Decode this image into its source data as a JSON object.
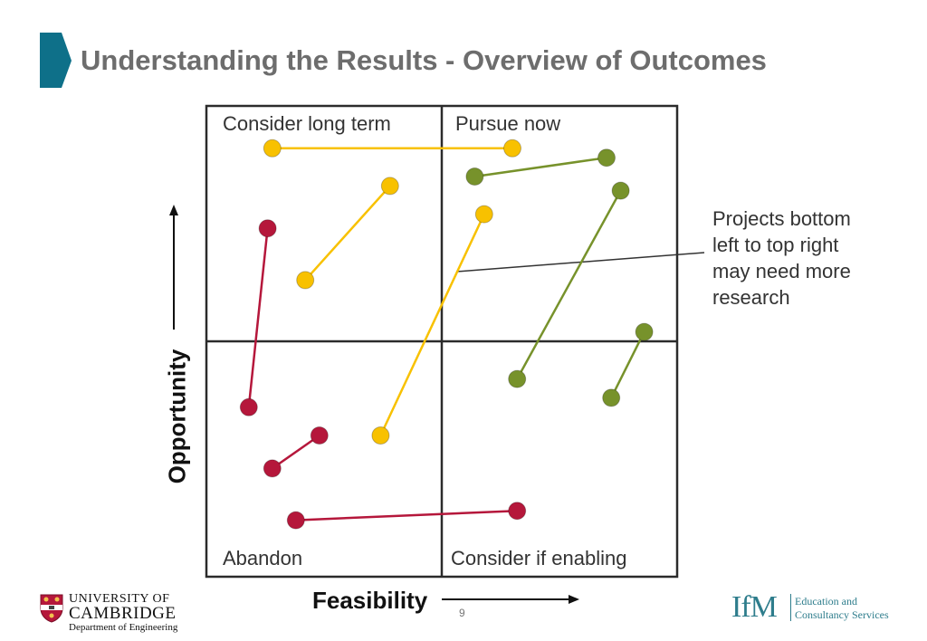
{
  "slide": {
    "title": "Understanding the Results - Overview of Outcomes",
    "page_number": "9",
    "accent_color": "#0e7089",
    "title_color": "#6d6d6d"
  },
  "quadrants": {
    "top_left": "Consider long term",
    "top_right": "Pursue now",
    "bottom_left": "Abandon",
    "bottom_right": "Consider if enabling"
  },
  "axes": {
    "x_label": "Feasibility",
    "y_label": "Opportunity"
  },
  "annotation": {
    "lines": [
      "Projects bottom",
      "left to top right",
      "may need more",
      "research"
    ]
  },
  "colors": {
    "red": "#b5173b",
    "yellow": "#f8c100",
    "green": "#77922b"
  },
  "chart_data": {
    "type": "scatter",
    "xlim": [
      0,
      100
    ],
    "ylim": [
      0,
      100
    ],
    "quadrant_split": {
      "x": 50,
      "y": 50
    },
    "segments": [
      {
        "color": "yellow",
        "from": [
          14,
          91
        ],
        "to": [
          65,
          91
        ]
      },
      {
        "color": "green",
        "from": [
          57,
          85
        ],
        "to": [
          85,
          89
        ]
      },
      {
        "color": "yellow",
        "from": [
          21,
          63
        ],
        "to": [
          39,
          83
        ]
      },
      {
        "color": "green",
        "from": [
          66,
          42
        ],
        "to": [
          88,
          82
        ]
      },
      {
        "color": "red",
        "from": [
          9,
          36
        ],
        "to": [
          13,
          74
        ]
      },
      {
        "color": "yellow",
        "from": [
          37,
          30
        ],
        "to": [
          59,
          77
        ]
      },
      {
        "color": "green",
        "from": [
          86,
          38
        ],
        "to": [
          93,
          52
        ]
      },
      {
        "color": "red",
        "from": [
          14,
          23
        ],
        "to": [
          24,
          30
        ]
      },
      {
        "color": "red",
        "from": [
          19,
          12
        ],
        "to": [
          66,
          14
        ]
      }
    ]
  },
  "logos": {
    "cambridge": {
      "line1": "UNIVERSITY OF",
      "line2": "CAMBRIDGE",
      "line3": "Department of Engineering"
    },
    "ifm": {
      "mark": "IfM",
      "line1": "Education and",
      "line2": "Consultancy Services"
    }
  }
}
